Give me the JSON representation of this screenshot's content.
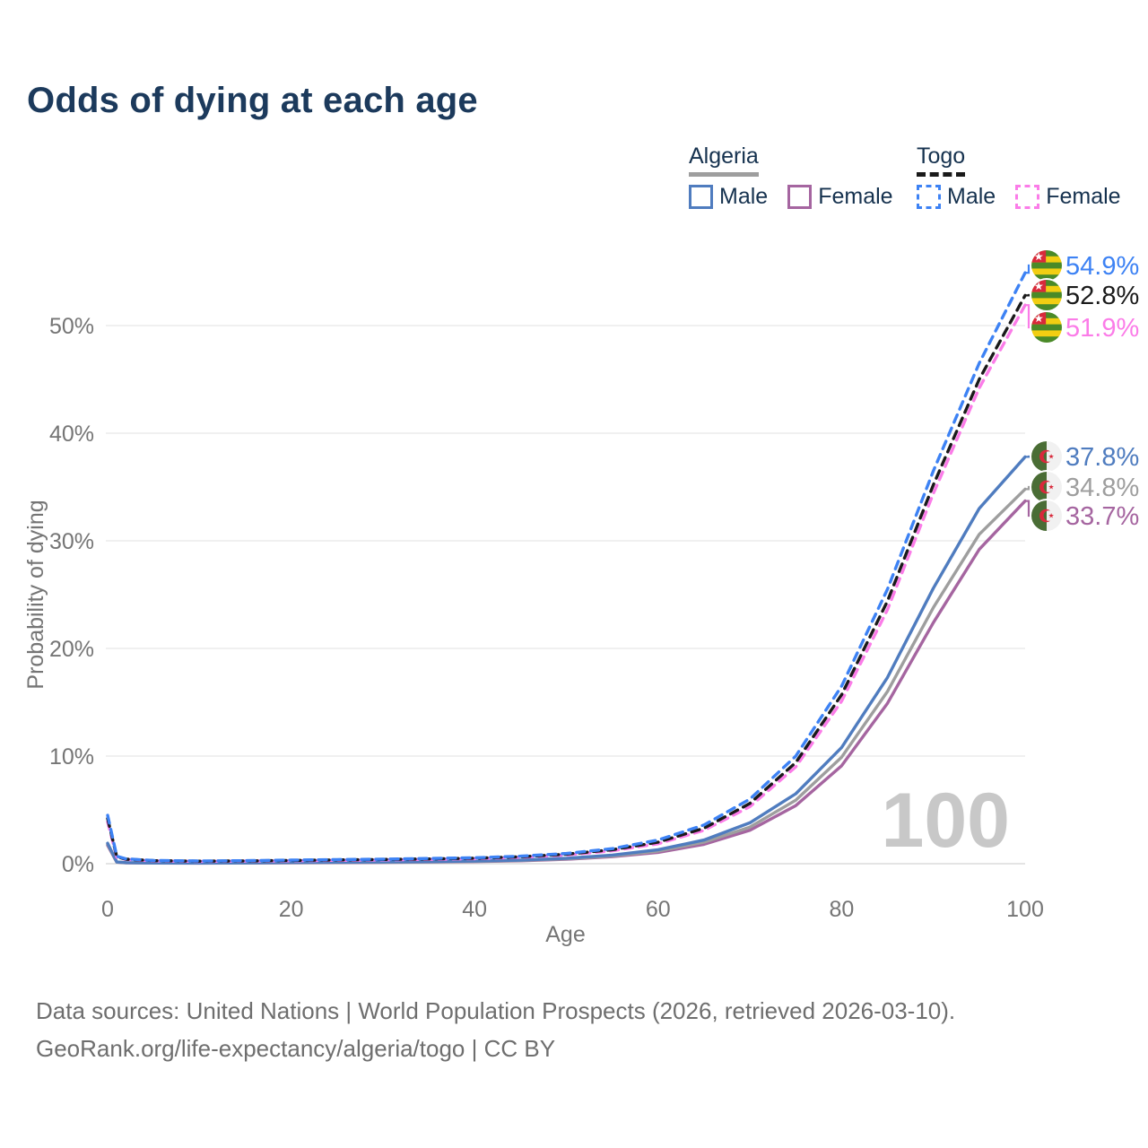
{
  "title": "Odds of dying at each age",
  "legend": {
    "groups": [
      {
        "name": "Algeria",
        "line_style": "solid",
        "underline_color": "#9e9e9e",
        "items": [
          {
            "label": "Male",
            "color": "#4f7cbf"
          },
          {
            "label": "Female",
            "color": "#a565a0"
          }
        ]
      },
      {
        "name": "Togo",
        "line_style": "dashed",
        "underline_color": "#1a1a1a",
        "items": [
          {
            "label": "Male",
            "color": "#3d82f4"
          },
          {
            "label": "Female",
            "color": "#fb7ce8"
          }
        ]
      }
    ]
  },
  "watermark": "100",
  "footer": {
    "line1": "Data sources: United Nations | World Population Prospects (2026, retrieved 2026-03-10).",
    "line2": "GeoRank.org/life-expectancy/algeria/togo | CC BY"
  },
  "chart_data": {
    "type": "line",
    "title": "Odds of dying at each age",
    "xlabel": "Age",
    "ylabel": "Probability of dying",
    "xlim": [
      0,
      100
    ],
    "ylim": [
      0,
      56
    ],
    "grid": "horizontal",
    "legend_position": "top-right",
    "x_ticks": [
      0,
      20,
      40,
      60,
      80,
      100
    ],
    "x_tick_labels": [
      "0",
      "20",
      "40",
      "60",
      "80",
      "100"
    ],
    "y_ticks": [
      0,
      10,
      20,
      30,
      40,
      50
    ],
    "y_tick_labels": [
      "0%",
      "10%",
      "20%",
      "30%",
      "40%",
      "50%"
    ],
    "x": [
      0,
      1,
      2,
      5,
      10,
      15,
      20,
      25,
      30,
      35,
      40,
      45,
      50,
      55,
      60,
      65,
      70,
      75,
      80,
      85,
      90,
      95,
      100
    ],
    "series": [
      {
        "name": "Togo Male",
        "country": "Togo",
        "sex": "Male",
        "style": "dashed",
        "color": "#3d82f4",
        "label_color": "#3d82f4",
        "end_label": "54.9%",
        "flag": "togo",
        "values": [
          4.5,
          0.7,
          0.45,
          0.3,
          0.25,
          0.28,
          0.33,
          0.38,
          0.42,
          0.48,
          0.55,
          0.7,
          0.95,
          1.4,
          2.2,
          3.6,
          6.0,
          10.0,
          16.5,
          25.5,
          36.5,
          46.5,
          54.9
        ]
      },
      {
        "name": "Togo Both sexes",
        "country": "Togo",
        "sex": "Both",
        "style": "dashed",
        "color": "#1a1a1a",
        "label_color": "#1a1a1a",
        "end_label": "52.8%",
        "flag": "togo",
        "values": [
          4.2,
          0.65,
          0.42,
          0.28,
          0.23,
          0.26,
          0.3,
          0.35,
          0.39,
          0.44,
          0.51,
          0.64,
          0.88,
          1.3,
          2.0,
          3.3,
          5.6,
          9.4,
          15.7,
          24.4,
          35.2,
          45.0,
          52.8
        ]
      },
      {
        "name": "Togo Female",
        "country": "Togo",
        "sex": "Female",
        "style": "dashed",
        "color": "#fb7ce8",
        "label_color": "#fb7ce8",
        "end_label": "51.9%",
        "flag": "togo",
        "values": [
          3.9,
          0.6,
          0.39,
          0.26,
          0.21,
          0.24,
          0.27,
          0.31,
          0.35,
          0.4,
          0.47,
          0.59,
          0.81,
          1.2,
          1.85,
          3.1,
          5.3,
          9.0,
          15.1,
          23.6,
          34.4,
          44.2,
          51.9
        ]
      },
      {
        "name": "Algeria Male",
        "country": "Algeria",
        "sex": "Male",
        "style": "solid",
        "color": "#4f7cbf",
        "label_color": "#4f7cbf",
        "end_label": "37.8%",
        "flag": "algeria",
        "values": [
          1.9,
          0.16,
          0.1,
          0.07,
          0.06,
          0.08,
          0.12,
          0.14,
          0.16,
          0.19,
          0.24,
          0.33,
          0.5,
          0.8,
          1.3,
          2.2,
          3.8,
          6.5,
          10.8,
          17.3,
          25.6,
          33.0,
          37.8
        ]
      },
      {
        "name": "Algeria Both sexes",
        "country": "Algeria",
        "sex": "Both",
        "style": "solid",
        "color": "#9e9e9e",
        "label_color": "#9e9e9e",
        "end_label": "34.8%",
        "flag": "algeria",
        "values": [
          1.8,
          0.15,
          0.09,
          0.065,
          0.055,
          0.07,
          0.1,
          0.12,
          0.14,
          0.17,
          0.22,
          0.3,
          0.45,
          0.72,
          1.17,
          2.0,
          3.4,
          5.9,
          9.9,
          16.0,
          23.8,
          30.6,
          34.8
        ]
      },
      {
        "name": "Algeria Female",
        "country": "Algeria",
        "sex": "Female",
        "style": "solid",
        "color": "#a565a0",
        "label_color": "#a565a0",
        "end_label": "33.7%",
        "flag": "algeria",
        "values": [
          1.7,
          0.14,
          0.085,
          0.06,
          0.05,
          0.06,
          0.08,
          0.1,
          0.12,
          0.15,
          0.19,
          0.27,
          0.41,
          0.65,
          1.05,
          1.8,
          3.1,
          5.4,
          9.1,
          14.9,
          22.4,
          29.2,
          33.7
        ]
      }
    ]
  }
}
